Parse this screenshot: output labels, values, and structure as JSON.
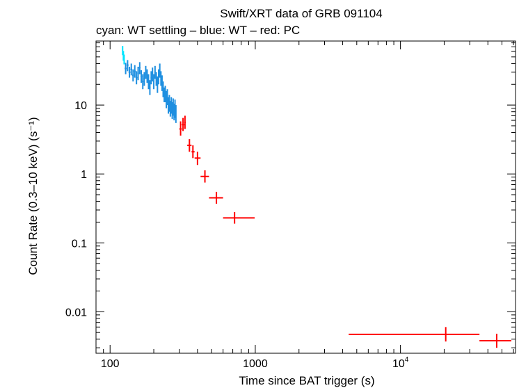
{
  "chart_data": {
    "type": "scatter",
    "title": "Swift/XRT data of GRB 091104",
    "subtitle": "cyan: WT settling – blue: WT – red: PC",
    "xlabel": "Time since BAT trigger (s)",
    "ylabel": "Count Rate (0.3–10 keV) (s⁻¹)",
    "xscale": "log",
    "yscale": "log",
    "xlim": [
      80,
      62000
    ],
    "ylim": [
      0.0025,
      85
    ],
    "x_ticks": [
      {
        "value": 100,
        "label": "100",
        "sup": ""
      },
      {
        "value": 1000,
        "label": "1000",
        "sup": ""
      },
      {
        "value": 10000,
        "label": "10",
        "sup": "4"
      }
    ],
    "y_ticks": [
      {
        "value": 0.01,
        "label": "0.01"
      },
      {
        "value": 0.1,
        "label": "0.1"
      },
      {
        "value": 1,
        "label": "1"
      },
      {
        "value": 10,
        "label": "10"
      }
    ],
    "series": [
      {
        "name": "WT settling",
        "color": "#00e5ff",
        "points": [
          {
            "x": 122,
            "y": 62,
            "xlo": 121.3,
            "xhi": 122.7,
            "ylo": 53,
            "yhi": 72
          },
          {
            "x": 123.5,
            "y": 52,
            "xlo": 122.7,
            "xhi": 124.3,
            "ylo": 44,
            "yhi": 61
          },
          {
            "x": 125,
            "y": 46,
            "xlo": 124.3,
            "xhi": 125.8,
            "ylo": 39,
            "yhi": 54
          }
        ]
      },
      {
        "name": "WT",
        "color": "#1e8fe0",
        "points": [
          {
            "x": 128,
            "y": 34,
            "xlo": 126,
            "xhi": 130,
            "ylo": 28,
            "yhi": 41
          },
          {
            "x": 132,
            "y": 38,
            "xlo": 130,
            "xhi": 134,
            "ylo": 31,
            "yhi": 45
          },
          {
            "x": 136,
            "y": 30,
            "xlo": 134,
            "xhi": 138,
            "ylo": 25,
            "yhi": 36
          },
          {
            "x": 140,
            "y": 33,
            "xlo": 138,
            "xhi": 142,
            "ylo": 27,
            "yhi": 40
          },
          {
            "x": 144,
            "y": 27,
            "xlo": 142,
            "xhi": 146,
            "ylo": 22,
            "yhi": 33
          },
          {
            "x": 148,
            "y": 31,
            "xlo": 146,
            "xhi": 150,
            "ylo": 25,
            "yhi": 38
          },
          {
            "x": 152,
            "y": 25,
            "xlo": 150,
            "xhi": 154,
            "ylo": 20,
            "yhi": 31
          },
          {
            "x": 156,
            "y": 29,
            "xlo": 154,
            "xhi": 158,
            "ylo": 23,
            "yhi": 36
          },
          {
            "x": 160,
            "y": 35,
            "xlo": 158,
            "xhi": 162,
            "ylo": 28,
            "yhi": 42
          },
          {
            "x": 164,
            "y": 26,
            "xlo": 162,
            "xhi": 166,
            "ylo": 21,
            "yhi": 32
          },
          {
            "x": 168,
            "y": 22,
            "xlo": 166,
            "xhi": 170,
            "ylo": 17,
            "yhi": 28
          },
          {
            "x": 172,
            "y": 24,
            "xlo": 170,
            "xhi": 174,
            "ylo": 19,
            "yhi": 30
          },
          {
            "x": 176,
            "y": 30,
            "xlo": 174,
            "xhi": 178,
            "ylo": 24,
            "yhi": 37
          },
          {
            "x": 180,
            "y": 27,
            "xlo": 178,
            "xhi": 182,
            "ylo": 21,
            "yhi": 33
          },
          {
            "x": 184,
            "y": 22,
            "xlo": 182,
            "xhi": 186,
            "ylo": 17,
            "yhi": 28
          },
          {
            "x": 188,
            "y": 18,
            "xlo": 186,
            "xhi": 190,
            "ylo": 14,
            "yhi": 23
          },
          {
            "x": 192,
            "y": 25,
            "xlo": 190,
            "xhi": 194,
            "ylo": 20,
            "yhi": 31
          },
          {
            "x": 196,
            "y": 28,
            "xlo": 194,
            "xhi": 198,
            "ylo": 22,
            "yhi": 35
          },
          {
            "x": 200,
            "y": 22,
            "xlo": 198,
            "xhi": 202,
            "ylo": 17,
            "yhi": 28
          },
          {
            "x": 204,
            "y": 30,
            "xlo": 202,
            "xhi": 206,
            "ylo": 24,
            "yhi": 37
          },
          {
            "x": 208,
            "y": 24,
            "xlo": 206,
            "xhi": 210,
            "ylo": 19,
            "yhi": 30
          },
          {
            "x": 212,
            "y": 20,
            "xlo": 210,
            "xhi": 214,
            "ylo": 15,
            "yhi": 26
          },
          {
            "x": 216,
            "y": 26,
            "xlo": 214,
            "xhi": 218,
            "ylo": 20,
            "yhi": 33
          },
          {
            "x": 220,
            "y": 32,
            "xlo": 218,
            "xhi": 222,
            "ylo": 25,
            "yhi": 40
          },
          {
            "x": 224,
            "y": 25,
            "xlo": 222,
            "xhi": 226,
            "ylo": 19,
            "yhi": 31
          },
          {
            "x": 228,
            "y": 21,
            "xlo": 226,
            "xhi": 230,
            "ylo": 16,
            "yhi": 27
          },
          {
            "x": 232,
            "y": 17,
            "xlo": 230,
            "xhi": 234,
            "ylo": 13,
            "yhi": 22
          },
          {
            "x": 236,
            "y": 14,
            "xlo": 234,
            "xhi": 238,
            "ylo": 11,
            "yhi": 18
          },
          {
            "x": 240,
            "y": 15,
            "xlo": 238,
            "xhi": 242,
            "ylo": 11,
            "yhi": 19
          },
          {
            "x": 244,
            "y": 12,
            "xlo": 242,
            "xhi": 246,
            "ylo": 9,
            "yhi": 16
          },
          {
            "x": 248,
            "y": 13,
            "xlo": 246,
            "xhi": 250,
            "ylo": 10,
            "yhi": 17
          },
          {
            "x": 252,
            "y": 10,
            "xlo": 250,
            "xhi": 254,
            "ylo": 7.5,
            "yhi": 13
          },
          {
            "x": 256,
            "y": 11,
            "xlo": 254,
            "xhi": 258,
            "ylo": 8,
            "yhi": 14
          },
          {
            "x": 260,
            "y": 9,
            "xlo": 258,
            "xhi": 262,
            "ylo": 6.8,
            "yhi": 11.5
          },
          {
            "x": 264,
            "y": 10,
            "xlo": 262,
            "xhi": 266,
            "ylo": 7.5,
            "yhi": 13
          },
          {
            "x": 268,
            "y": 8.5,
            "xlo": 266,
            "xhi": 270,
            "ylo": 6.3,
            "yhi": 11
          },
          {
            "x": 272,
            "y": 9.5,
            "xlo": 270,
            "xhi": 274,
            "ylo": 7,
            "yhi": 12.5
          },
          {
            "x": 276,
            "y": 8,
            "xlo": 274,
            "xhi": 278,
            "ylo": 6,
            "yhi": 10.5
          },
          {
            "x": 280,
            "y": 9,
            "xlo": 278,
            "xhi": 282,
            "ylo": 6.5,
            "yhi": 12
          },
          {
            "x": 284,
            "y": 7.5,
            "xlo": 282,
            "xhi": 286,
            "ylo": 5.5,
            "yhi": 10
          }
        ]
      },
      {
        "name": "PC",
        "color": "#ff0000",
        "points": [
          {
            "x": 306,
            "y": 4.5,
            "xlo": 300,
            "xhi": 312,
            "ylo": 3.6,
            "yhi": 5.8
          },
          {
            "x": 318,
            "y": 5.2,
            "xlo": 312,
            "xhi": 324,
            "ylo": 4.2,
            "yhi": 6.5
          },
          {
            "x": 328,
            "y": 5.6,
            "xlo": 324,
            "xhi": 332,
            "ylo": 4.5,
            "yhi": 7
          },
          {
            "x": 352,
            "y": 2.6,
            "xlo": 340,
            "xhi": 364,
            "ylo": 2.1,
            "yhi": 3.2
          },
          {
            "x": 372,
            "y": 2.1,
            "xlo": 364,
            "xhi": 382,
            "ylo": 1.7,
            "yhi": 2.6
          },
          {
            "x": 400,
            "y": 1.7,
            "xlo": 382,
            "xhi": 420,
            "ylo": 1.35,
            "yhi": 2.1
          },
          {
            "x": 450,
            "y": 0.92,
            "xlo": 420,
            "xhi": 480,
            "ylo": 0.75,
            "yhi": 1.13
          },
          {
            "x": 540,
            "y": 0.45,
            "xlo": 480,
            "xhi": 600,
            "ylo": 0.37,
            "yhi": 0.55
          },
          {
            "x": 720,
            "y": 0.23,
            "xlo": 600,
            "xhi": 990,
            "ylo": 0.19,
            "yhi": 0.28
          },
          {
            "x": 20500,
            "y": 0.0047,
            "xlo": 4400,
            "xhi": 35000,
            "ylo": 0.0037,
            "yhi": 0.006
          },
          {
            "x": 46000,
            "y": 0.0038,
            "xlo": 35000,
            "xhi": 58000,
            "ylo": 0.003,
            "yhi": 0.0048
          }
        ]
      }
    ]
  }
}
